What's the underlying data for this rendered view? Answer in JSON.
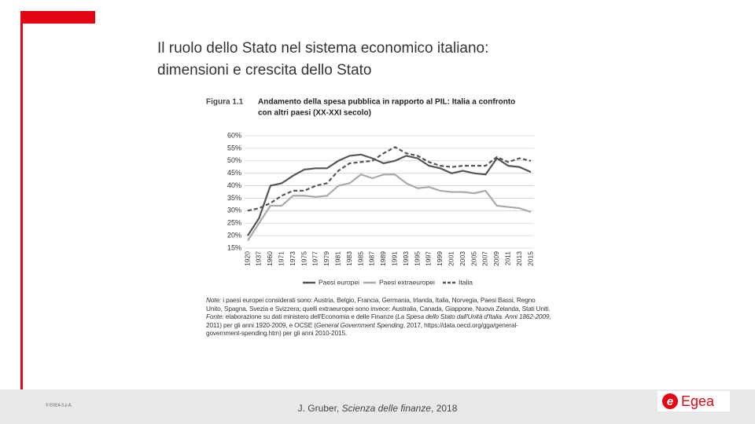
{
  "slide_title": [
    "Il ruolo dello Stato nel sistema economico italiano:",
    "dimensioni e crescita dello Stato"
  ],
  "figure_label": "Figura 1.1",
  "chart_data": {
    "type": "line",
    "title": [
      "Andamento della spesa pubblica in rapporto al PIL: Italia a confronto",
      "con altri paesi (XX-XXI secolo)"
    ],
    "categories": [
      "1920",
      "1937",
      "1960",
      "1971",
      "1973",
      "1975",
      "1977",
      "1979",
      "1981",
      "1983",
      "1985",
      "1987",
      "1989",
      "1991",
      "1993",
      "1995",
      "1997",
      "1999",
      "2001",
      "2003",
      "2005",
      "2007",
      "2009",
      "2011",
      "2013",
      "2015"
    ],
    "series": [
      {
        "name": "Paesi europei",
        "color": "#555555",
        "style": "solid",
        "values": [
          20,
          27,
          40,
          41,
          44,
          46.5,
          47,
          47,
          50,
          52,
          52.5,
          51,
          49,
          50,
          52,
          51,
          48,
          47,
          45,
          46,
          45,
          44.5,
          51,
          48,
          47.5,
          45.5
        ]
      },
      {
        "name": "Paesi extraeuropei",
        "color": "#aaaaaa",
        "style": "solid",
        "values": [
          18,
          25,
          32,
          32,
          36,
          36,
          35.5,
          36,
          40,
          41,
          44.5,
          43,
          44.5,
          44.5,
          41,
          39,
          39.5,
          38,
          37.5,
          37.5,
          37,
          38,
          32,
          31.5,
          31,
          29.5
        ]
      },
      {
        "name": "Italia",
        "color": "#555555",
        "style": "dashed",
        "values": [
          30,
          31,
          33,
          36,
          38,
          38,
          40,
          41,
          46,
          49,
          49.5,
          50,
          53,
          55.5,
          53,
          52,
          49.5,
          48,
          47.5,
          48,
          48,
          48,
          51.5,
          49.5,
          51,
          50
        ]
      }
    ],
    "ylim": [
      15,
      60
    ],
    "yticks": [
      {
        "value": 15,
        "label": "15%"
      },
      {
        "value": 20,
        "label": "20%"
      },
      {
        "value": 25,
        "label": "25%"
      },
      {
        "value": 30,
        "label": "30%"
      },
      {
        "value": 35,
        "label": "35%"
      },
      {
        "value": 40,
        "label": "40%"
      },
      {
        "value": 45,
        "label": "45%"
      },
      {
        "value": 50,
        "label": "50%"
      },
      {
        "value": 55,
        "label": "55%"
      },
      {
        "value": 60,
        "label": "60%"
      }
    ],
    "grid": true,
    "legend": "bottom"
  },
  "note": {
    "label": "Note:",
    "text": "i paesi europei considerati sono: Austria, Belgio, Francia, Germania, Irlanda, Italia, Norvegia, Paesi Bassi, Regno Unito, Spagna, Svezia e Svizzera; quelli extraeuropei sono invece: Australia, Canada, Giappone, Nuova Zelanda, Stati Uniti."
  },
  "source": {
    "label": "Fonte:",
    "text1": "elaborazione su dati ministero dell'Economia e delle Finanze (",
    "italic": "La Spesa dello Stato dall'Unità d'Italia. Anni 1862-2009",
    "text2": ", 2011) per gli anni 1920-2009, e OCSE (",
    "italic2": "General Government Spending",
    "text3": ", 2017, https://data.oecd.org/gga/general-government-spending.htm) per gli anni 2010-2015."
  },
  "footer": {
    "copyright": "© EGEA S.p.A.",
    "citation_author": "J. Gruber, ",
    "citation_title": "Scienza delle finanze",
    "citation_year": ", 2018",
    "logo": "Egea"
  }
}
